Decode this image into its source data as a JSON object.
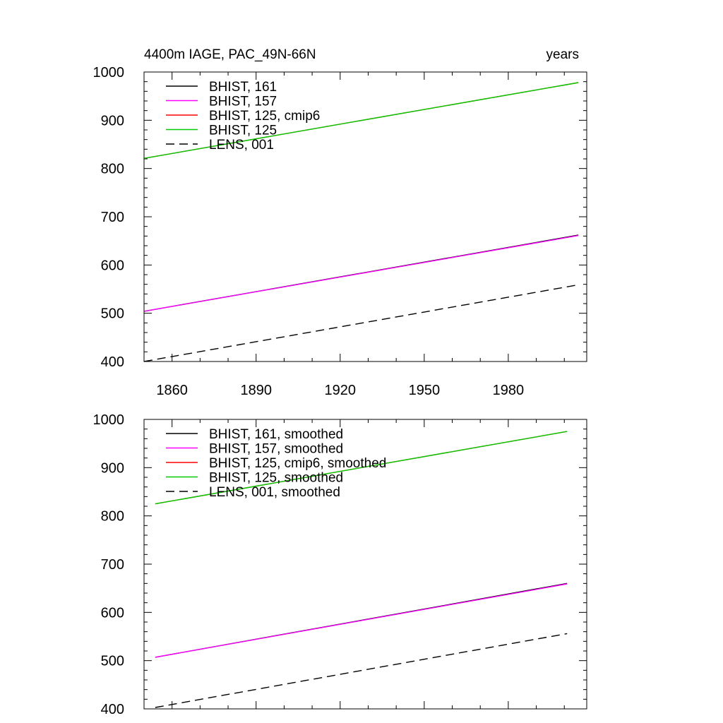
{
  "chart_data": [
    {
      "type": "line",
      "title": "4400m IAGE, PAC_49N-66N",
      "title_right": "years",
      "xlabel": "",
      "ylabel": "",
      "xlim": [
        1850,
        2008
      ],
      "ylim": [
        400,
        1000
      ],
      "x_ticks": [
        1860,
        1890,
        1920,
        1950,
        1980
      ],
      "y_ticks": [
        400,
        500,
        600,
        700,
        800,
        900,
        1000
      ],
      "show_x_tick_labels": true,
      "legend_position": "top-left",
      "series": [
        {
          "name": "BHIST, 161",
          "color": "#000000",
          "dash": "solid",
          "x": [
            1850,
            2005
          ],
          "values": [
            504,
            662
          ]
        },
        {
          "name": "BHIST, 157",
          "color": "#ff00ff",
          "dash": "solid",
          "x": [
            1850,
            2005
          ],
          "values": [
            504,
            661
          ]
        },
        {
          "name": "BHIST, 125, cmip6",
          "color": "#ff0000",
          "dash": "solid",
          "x": [
            1850,
            2005
          ],
          "values": [
            821,
            978
          ]
        },
        {
          "name": "BHIST, 125",
          "color": "#00cc00",
          "dash": "solid",
          "x": [
            1850,
            2005
          ],
          "values": [
            821,
            978
          ]
        },
        {
          "name": "LENS, 001",
          "color": "#000000",
          "dash": "dashed",
          "x": [
            1850,
            2005
          ],
          "values": [
            400,
            559
          ]
        }
      ]
    },
    {
      "type": "line",
      "title": "",
      "title_right": "",
      "xlabel": "",
      "ylabel": "",
      "xlim": [
        1850,
        2008
      ],
      "ylim": [
        400,
        1000
      ],
      "x_ticks": [
        1860,
        1890,
        1920,
        1950,
        1980
      ],
      "y_ticks": [
        400,
        500,
        600,
        700,
        800,
        900,
        1000
      ],
      "show_x_tick_labels": false,
      "legend_position": "top-left",
      "series": [
        {
          "name": "BHIST, 161, smoothed",
          "color": "#000000",
          "dash": "solid",
          "x": [
            1854,
            2001
          ],
          "values": [
            507,
            660
          ]
        },
        {
          "name": "BHIST, 157, smoothed",
          "color": "#ff00ff",
          "dash": "solid",
          "x": [
            1854,
            2001
          ],
          "values": [
            507,
            659
          ]
        },
        {
          "name": "BHIST, 125, cmip6, smoothed",
          "color": "#ff0000",
          "dash": "solid",
          "x": [
            1854,
            2001
          ],
          "values": [
            825,
            975
          ]
        },
        {
          "name": "BHIST, 125, smoothed",
          "color": "#00cc00",
          "dash": "solid",
          "x": [
            1854,
            2001
          ],
          "values": [
            825,
            975
          ]
        },
        {
          "name": "LENS, 001, smoothed",
          "color": "#000000",
          "dash": "dashed",
          "x": [
            1854,
            2001
          ],
          "values": [
            403,
            556
          ]
        }
      ]
    }
  ]
}
